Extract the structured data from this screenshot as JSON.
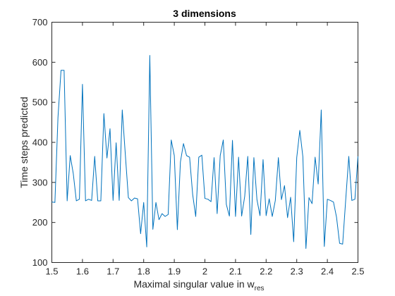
{
  "chart_data": {
    "type": "line",
    "title": "3 dimensions",
    "xlabel": "Maximal singular value in w",
    "xlabel_subscript": "res",
    "ylabel": "Time steps predicted",
    "xlim": [
      1.5,
      2.5
    ],
    "ylim": [
      100,
      700
    ],
    "xticks": [
      1.5,
      1.6,
      1.7,
      1.8,
      1.9,
      2.0,
      2.1,
      2.2,
      2.3,
      2.4,
      2.5
    ],
    "xtick_labels": [
      "1.5",
      "1.6",
      "1.7",
      "1.8",
      "1.9",
      "2",
      "2.1",
      "2.2",
      "2.3",
      "2.4",
      "2.5"
    ],
    "yticks": [
      100,
      200,
      300,
      400,
      500,
      600,
      700
    ],
    "ytick_labels": [
      "100",
      "200",
      "300",
      "400",
      "500",
      "600",
      "700"
    ],
    "grid": false,
    "legend": false,
    "colors": {
      "series": "#0072bd",
      "axes": "#262626"
    },
    "series": [
      {
        "x": [
          1.5,
          1.51,
          1.52,
          1.53,
          1.54,
          1.55,
          1.56,
          1.57,
          1.58,
          1.59,
          1.6,
          1.61,
          1.62,
          1.63,
          1.64,
          1.65,
          1.66,
          1.67,
          1.68,
          1.69,
          1.7,
          1.71,
          1.72,
          1.73,
          1.74,
          1.75,
          1.76,
          1.77,
          1.78,
          1.79,
          1.8,
          1.81,
          1.82,
          1.83,
          1.84,
          1.85,
          1.86,
          1.87,
          1.88,
          1.89,
          1.9,
          1.91,
          1.92,
          1.93,
          1.94,
          1.95,
          1.96,
          1.97,
          1.98,
          1.99,
          2.0,
          2.01,
          2.02,
          2.03,
          2.04,
          2.05,
          2.06,
          2.07,
          2.08,
          2.09,
          2.1,
          2.11,
          2.12,
          2.13,
          2.14,
          2.15,
          2.16,
          2.17,
          2.18,
          2.19,
          2.2,
          2.21,
          2.22,
          2.23,
          2.24,
          2.25,
          2.26,
          2.27,
          2.28,
          2.29,
          2.3,
          2.31,
          2.32,
          2.33,
          2.34,
          2.35,
          2.36,
          2.37,
          2.38,
          2.39,
          2.4,
          2.41,
          2.42,
          2.43,
          2.44,
          2.45,
          2.46,
          2.47,
          2.48,
          2.49,
          2.5
        ],
        "y": [
          251,
          250,
          462,
          580,
          580,
          254,
          367,
          322,
          254,
          258,
          545,
          254,
          258,
          255,
          365,
          254,
          254,
          472,
          361,
          434,
          255,
          399,
          255,
          481,
          370,
          262,
          254,
          261,
          259,
          172,
          250,
          139,
          617,
          183,
          250,
          207,
          222,
          215,
          220,
          406,
          367,
          182,
          351,
          397,
          367,
          363,
          270,
          215,
          363,
          368,
          260,
          258,
          252,
          362,
          222,
          367,
          406,
          245,
          216,
          405,
          215,
          363,
          216,
          265,
          365,
          170,
          362,
          257,
          217,
          357,
          217,
          259,
          215,
          255,
          362,
          257,
          292,
          212,
          263,
          152,
          362,
          430,
          364,
          135,
          262,
          247,
          363,
          296,
          481,
          140,
          258,
          255,
          251,
          213,
          148,
          146,
          257,
          365,
          255,
          258,
          365
        ]
      }
    ]
  }
}
